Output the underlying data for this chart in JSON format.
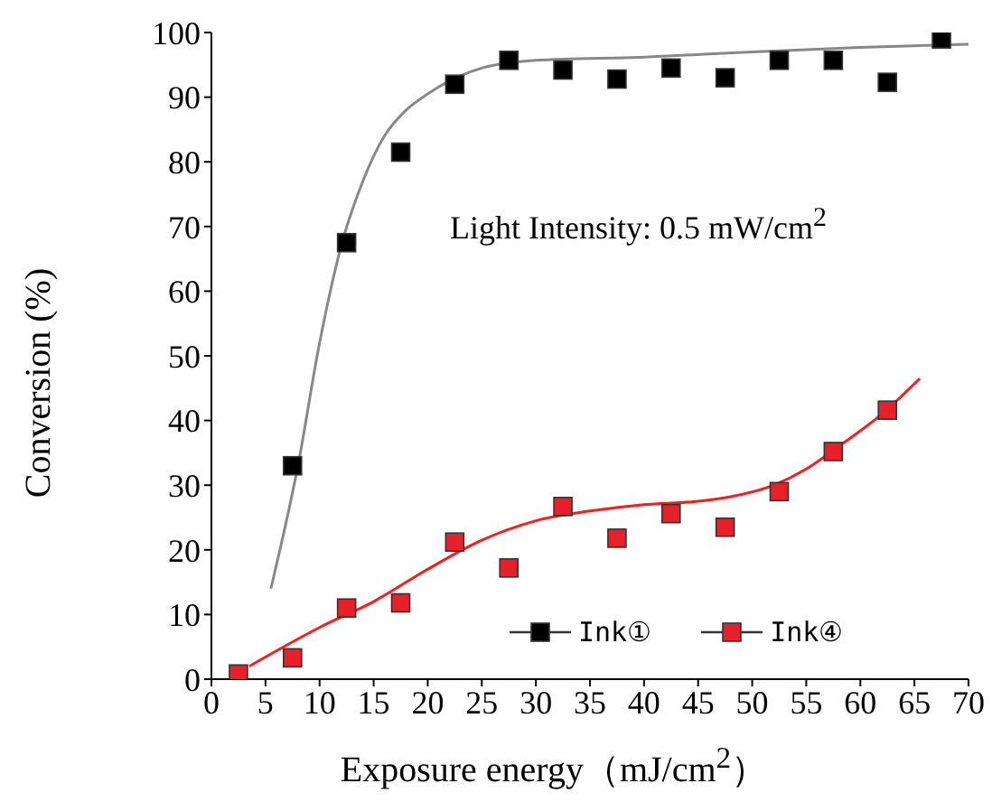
{
  "chart_data": {
    "type": "scatter",
    "xlabel": "Exposure energy（mJ/cm$^{2}$）",
    "ylabel": "Conversion (%)",
    "annotations": [
      "Light Intensity: 0.5 mW/cm$^{2}$"
    ],
    "xlim": [
      0,
      70
    ],
    "xticks": [
      0,
      5,
      10,
      15,
      20,
      25,
      30,
      35,
      40,
      45,
      50,
      55,
      60,
      65,
      70
    ],
    "ylim": [
      0,
      100
    ],
    "yticks": [
      0,
      10,
      20,
      30,
      40,
      50,
      60,
      70,
      80,
      90,
      100
    ],
    "grid": false,
    "legend": "bottom right",
    "marker": "square",
    "series": [
      {
        "name": "Ink①",
        "color": "#000000",
        "x": [
          7.5,
          12.5,
          17.5,
          22.5,
          27.5,
          32.5,
          37.5,
          42.5,
          47.5,
          52.5,
          57.5,
          62.5,
          67.5
        ],
        "values": [
          33,
          67.5,
          81.5,
          92,
          95.7,
          94.2,
          92.8,
          94.5,
          93,
          95.7,
          95.7,
          92.3,
          99
        ]
      },
      {
        "name": "Ink④",
        "color": "#e8202a",
        "x": [
          2.5,
          7.5,
          12.5,
          17.5,
          22.5,
          27.5,
          32.5,
          37.5,
          42.5,
          47.5,
          52.5,
          57.5,
          62.5
        ],
        "values": [
          0.8,
          3.3,
          11,
          11.8,
          21.2,
          17.2,
          26.7,
          21.8,
          25.6,
          23.5,
          29,
          35.2,
          41.6
        ]
      },
      {
        "type": "line",
        "marker": "none",
        "color": "#888888",
        "x": [
          5.5,
          8,
          10,
          12,
          14,
          16,
          18,
          20,
          22,
          25,
          30,
          40,
          50,
          60,
          70
        ],
        "values": [
          14,
          33,
          52,
          67,
          77,
          84,
          88,
          90.5,
          92.5,
          94.5,
          95.7,
          96.2,
          97,
          97.7,
          98.2
        ]
      },
      {
        "type": "line",
        "marker": "none",
        "color": "#ff1a1a",
        "x": [
          3.5,
          10,
          15,
          20,
          25,
          30,
          35,
          40,
          45,
          48,
          52,
          55,
          58,
          62,
          65.5
        ],
        "values": [
          2,
          8,
          12,
          17,
          21.5,
          24.5,
          26,
          27,
          27.5,
          28.2,
          30,
          32.5,
          36,
          41,
          46.5
        ]
      }
    ]
  }
}
